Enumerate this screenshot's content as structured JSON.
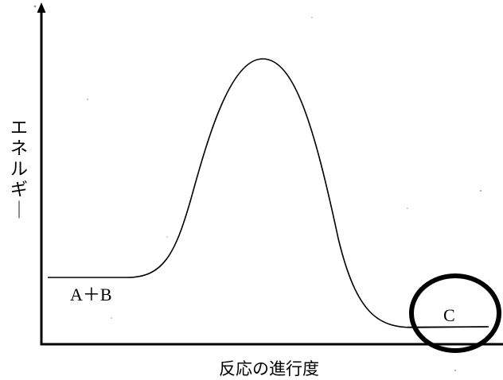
{
  "diagram": {
    "y_axis_label": "エネルギー",
    "x_axis_label": "反応の進行度",
    "reactant_label": "A＋B",
    "product_label": "C",
    "annotation": "circle-highlight-around-product"
  }
}
